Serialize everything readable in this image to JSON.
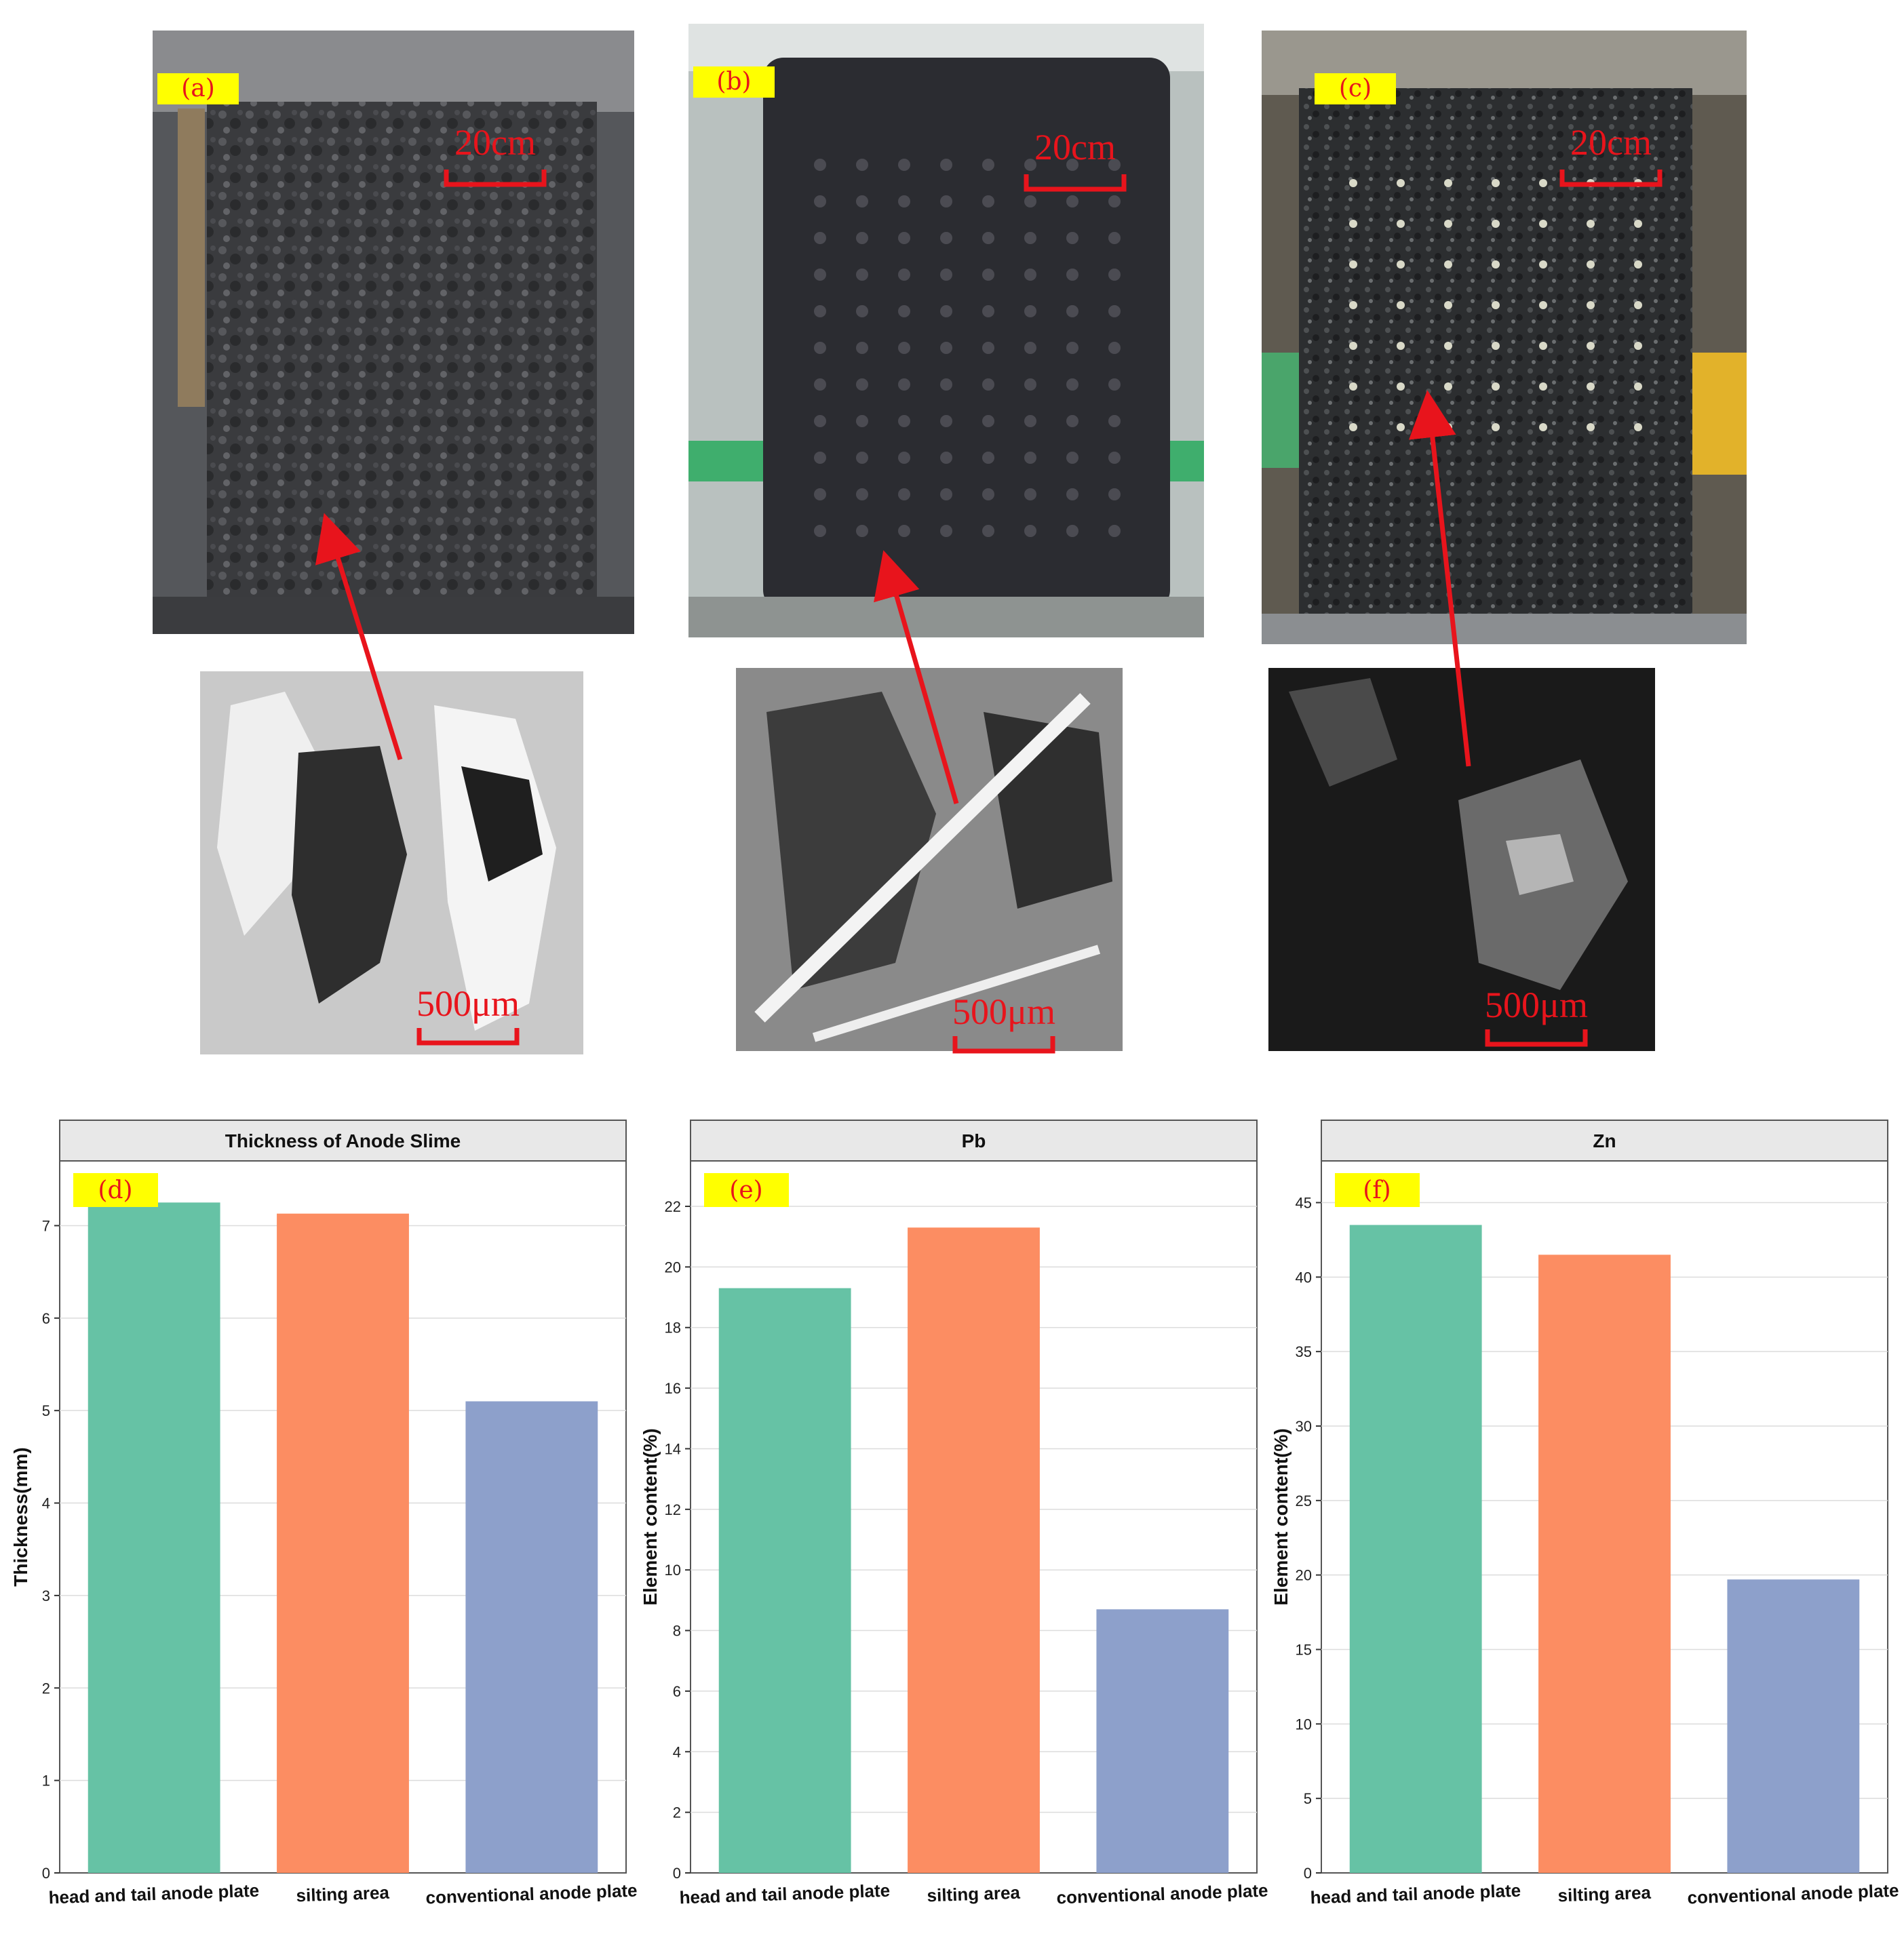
{
  "photos": [
    {
      "label": "(a)",
      "scale_top": "20cm",
      "scale_micro": "500μm"
    },
    {
      "label": "(b)",
      "scale_top": "20cm",
      "scale_micro": "500μm"
    },
    {
      "label": "(c)",
      "scale_top": "20cm",
      "scale_micro": "500μm"
    }
  ],
  "chart_data": [
    {
      "type": "bar",
      "label": "(d)",
      "title": "Thickness of Anode Slime",
      "xlabel": "",
      "ylabel": "Thickness(mm)",
      "categories": [
        "head and tail anode plate",
        "silting area",
        "conventional anode plate"
      ],
      "values": [
        7.25,
        7.13,
        5.1
      ],
      "ylim": [
        0,
        7.7
      ],
      "yticks": [
        0,
        1,
        2,
        3,
        4,
        5,
        6,
        7
      ],
      "colors": [
        "#66c2a5",
        "#fc8d62",
        "#8da0cb"
      ],
      "grid": true
    },
    {
      "type": "bar",
      "label": "(e)",
      "title": "Pb",
      "xlabel": "",
      "ylabel": "Element content(%)",
      "categories": [
        "head and tail anode plate",
        "silting area",
        "conventional anode plate"
      ],
      "values": [
        19.3,
        21.3,
        8.7
      ],
      "ylim": [
        0,
        23.5
      ],
      "yticks": [
        0,
        2,
        4,
        6,
        8,
        10,
        12,
        14,
        16,
        18,
        20,
        22
      ],
      "colors": [
        "#66c2a5",
        "#fc8d62",
        "#8da0cb"
      ],
      "grid": true
    },
    {
      "type": "bar",
      "label": "(f)",
      "title": "Zn",
      "xlabel": "",
      "ylabel": "Element content(%)",
      "categories": [
        "head and tail anode plate",
        "silting area",
        "conventional anode plate"
      ],
      "values": [
        43.5,
        41.5,
        19.7
      ],
      "ylim": [
        0,
        47.8
      ],
      "yticks": [
        0,
        5,
        10,
        15,
        20,
        25,
        30,
        35,
        40,
        45
      ],
      "colors": [
        "#66c2a5",
        "#fc8d62",
        "#8da0cb"
      ],
      "grid": true
    }
  ]
}
